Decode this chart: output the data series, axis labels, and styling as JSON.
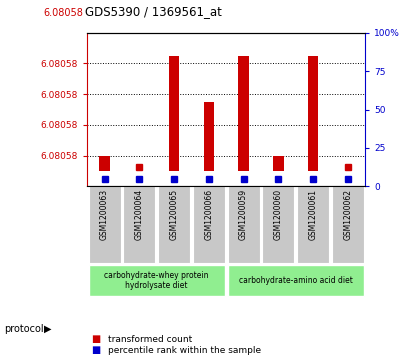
{
  "title": "GDS5390 / 1369561_at",
  "title_prefix_red": "6.08058",
  "samples": [
    "GSM1200063",
    "GSM1200064",
    "GSM1200065",
    "GSM1200066",
    "GSM1200059",
    "GSM1200060",
    "GSM1200061",
    "GSM1200062"
  ],
  "red_tops": [
    6.080578,
    6.080576,
    6.080591,
    6.080585,
    6.080591,
    6.080578,
    6.080591,
    6.080576
  ],
  "blue_percentiles": [
    5,
    5,
    5,
    5,
    5,
    5,
    5,
    5
  ],
  "bar_bottom": 6.080576,
  "ymin": 6.080574,
  "ymax": 6.080594,
  "ytick_positions": [
    6.080578,
    6.080582,
    6.080586,
    6.08059
  ],
  "ytick_labels": [
    "6.08058",
    "6.08058",
    "6.08058",
    "6.08058"
  ],
  "y2min": 0,
  "y2max": 100,
  "y2ticks": [
    0,
    25,
    50,
    75,
    100
  ],
  "y2tick_labels": [
    "0",
    "25",
    "50",
    "75",
    "100%"
  ],
  "group1_label": "carbohydrate-whey protein\nhydrolysate diet",
  "group2_label": "carbohydrate-amino acid diet",
  "protocol_label": "protocol",
  "legend_red": "transformed count",
  "legend_blue": "percentile rank within the sample",
  "red_color": "#cc0000",
  "blue_color": "#0000cc",
  "bg_xtick": "#c8c8c8",
  "bg_group": "#90ee90",
  "bar_width": 0.3
}
